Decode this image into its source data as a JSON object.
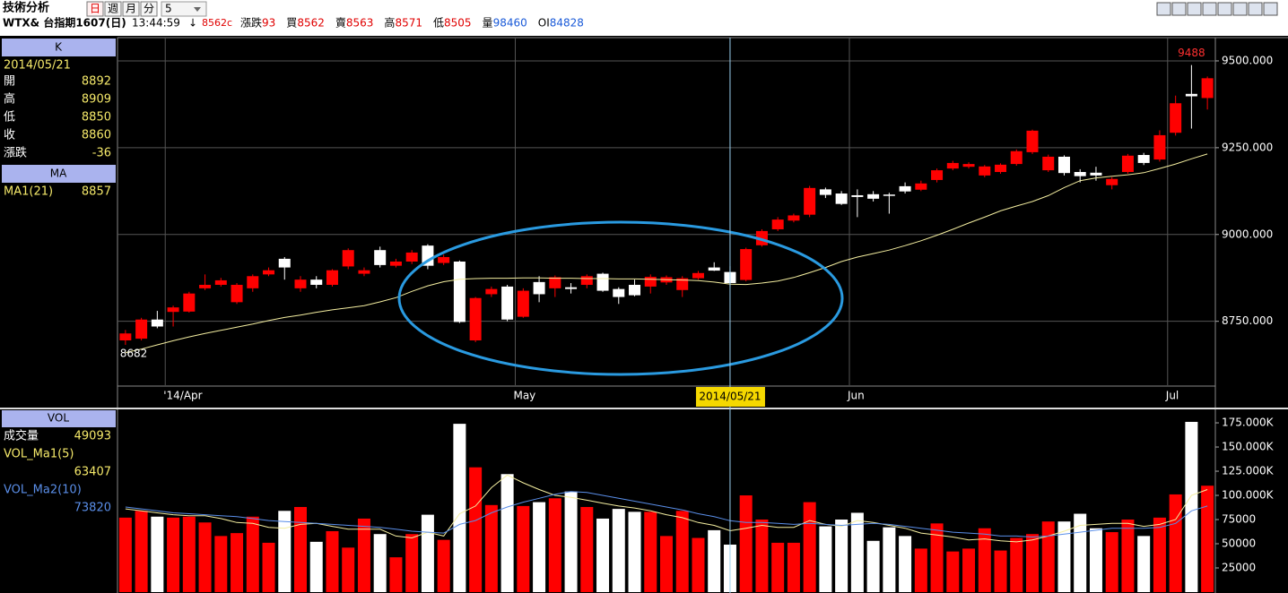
{
  "header": {
    "title": "技術分析",
    "tabs": [
      "日",
      "週",
      "月",
      "分"
    ],
    "select": "5",
    "symbol": "WTX& 台指期1607(日)",
    "time": "13:44:59",
    "arrow": "↓",
    "last": "8562c",
    "quote": [
      {
        "label": "漲跌",
        "value": 93
      },
      {
        "label": "買",
        "value": 8562
      },
      {
        "label": "賣",
        "value": 8563
      },
      {
        "label": "高",
        "value": 8571
      },
      {
        "label": "低",
        "value": 8505
      },
      {
        "label": "量",
        "value": 98460
      },
      {
        "label": "OI",
        "value": 84828
      }
    ]
  },
  "info_panel": {
    "heading": "K",
    "date": "2014/05/21",
    "rows": [
      {
        "label": "開",
        "value": 8892
      },
      {
        "label": "高",
        "value": 8909
      },
      {
        "label": "低",
        "value": 8850
      },
      {
        "label": "收",
        "value": 8860
      },
      {
        "label": "漲跌",
        "value": -36
      }
    ],
    "ma_heading": "MA",
    "ma_value": 8857
  },
  "vol_panel": {
    "heading": "VOL",
    "volume": 49093,
    "ma1": 63407,
    "ma2": 73820
  },
  "chart_data": [
    {
      "type": "candlestick",
      "categories": [
        null,
        null,
        null,
        "'14/Apr",
        null,
        null,
        null,
        null,
        null,
        null,
        null,
        null,
        null,
        null,
        null,
        null,
        null,
        null,
        null,
        null,
        null,
        null,
        null,
        null,
        null,
        "May",
        null,
        null,
        null,
        null,
        null,
        null,
        null,
        null,
        null,
        null,
        null,
        null,
        null,
        null,
        null,
        null,
        null,
        null,
        null,
        null,
        "Jun",
        null,
        null,
        null,
        null,
        null,
        null,
        null,
        null,
        null,
        null,
        null,
        null,
        null,
        null,
        null,
        null,
        null,
        null,
        null,
        "Jul",
        null,
        null
      ],
      "open": [
        8695,
        8700,
        8755,
        8777,
        8778,
        8845,
        8855,
        8805,
        8845,
        8885,
        8930,
        8845,
        8870,
        8855,
        8908,
        8887,
        8955,
        8910,
        8922,
        8968,
        8918,
        8922,
        8695,
        8828,
        8850,
        8763,
        8863,
        8845,
        8848,
        8855,
        8887,
        8843,
        8855,
        8850,
        8862,
        8840,
        8874,
        8905,
        8892,
        8869,
        8969,
        9015,
        9040,
        9057,
        9130,
        9118,
        9113,
        9116,
        9115,
        9139,
        9129,
        9157,
        9190,
        9195,
        9170,
        9180,
        9203,
        9237,
        9185,
        9224,
        9180,
        9178,
        9142,
        9180,
        9229,
        9216,
        9293,
        9405,
        9393
      ],
      "high": [
        8725,
        8760,
        8780,
        8795,
        8835,
        8885,
        8875,
        8860,
        8885,
        8905,
        8935,
        8880,
        8880,
        8900,
        8960,
        8905,
        8965,
        8930,
        8955,
        8972,
        8942,
        8925,
        8820,
        8850,
        8855,
        8845,
        8880,
        8882,
        8860,
        8885,
        8890,
        8848,
        8870,
        8885,
        8882,
        8880,
        8895,
        8920,
        8909,
        8962,
        9015,
        9050,
        9060,
        9140,
        9135,
        9125,
        9130,
        9125,
        9120,
        9150,
        9155,
        9190,
        9212,
        9208,
        9200,
        9205,
        9245,
        9302,
        9230,
        9228,
        9188,
        9195,
        9165,
        9232,
        9235,
        9300,
        9400,
        9488,
        9455
      ],
      "low": [
        8682,
        8695,
        8730,
        8735,
        8775,
        8840,
        8850,
        8800,
        8835,
        8880,
        8870,
        8835,
        8845,
        8850,
        8900,
        8880,
        8905,
        8905,
        8915,
        8900,
        8912,
        8745,
        8690,
        8820,
        8750,
        8760,
        8805,
        8820,
        8830,
        8845,
        8835,
        8800,
        8822,
        8830,
        8855,
        8820,
        8870,
        8895,
        8850,
        8865,
        8965,
        9010,
        9035,
        9050,
        9105,
        9085,
        9050,
        9095,
        9060,
        9118,
        9125,
        9150,
        9185,
        9190,
        9165,
        9175,
        9198,
        9232,
        9180,
        9170,
        9150,
        9155,
        9130,
        9175,
        9200,
        9210,
        9285,
        9305,
        9360
      ],
      "close": [
        8715,
        8755,
        8735,
        8790,
        8830,
        8855,
        8868,
        8855,
        8880,
        8897,
        8905,
        8870,
        8855,
        8897,
        8955,
        8897,
        8912,
        8922,
        8948,
        8910,
        8935,
        8748,
        8817,
        8843,
        8755,
        8838,
        8828,
        8877,
        8843,
        8880,
        8838,
        8820,
        8825,
        8878,
        8877,
        8874,
        8889,
        8896,
        8860,
        8958,
        9010,
        9043,
        9055,
        9134,
        9114,
        9088,
        9108,
        9103,
        9113,
        9124,
        9147,
        9185,
        9206,
        9203,
        9196,
        9201,
        9240,
        9299,
        9224,
        9177,
        9168,
        9170,
        9160,
        9227,
        9206,
        9286,
        9378,
        9398,
        9450
      ],
      "up_color": "#ff0000",
      "down_color": "#ffffff",
      "series": [
        {
          "name": "MA1(21)",
          "color": "#f4eea0",
          "values": [
            8660,
            8670,
            8682,
            8694,
            8705,
            8715,
            8724,
            8733,
            8742,
            8752,
            8761,
            8768,
            8776,
            8783,
            8789,
            8795,
            8806,
            8818,
            8836,
            8852,
            8864,
            8871,
            8873,
            8874,
            8874,
            8875,
            8875,
            8874,
            8874,
            8873,
            8873,
            8872,
            8872,
            8871,
            8870,
            8869,
            8867,
            8863,
            8857,
            8856,
            8860,
            8866,
            8876,
            8890,
            8905,
            8922,
            8935,
            8945,
            8955,
            8968,
            8982,
            8998,
            9015,
            9033,
            9050,
            9068,
            9082,
            9095,
            9112,
            9135,
            9155,
            9163,
            9168,
            9172,
            9178,
            9190,
            9203,
            9218,
            9232
          ]
        }
      ],
      "ylim": [
        8566,
        9567
      ],
      "yticks": [
        {
          "value": 9500,
          "label": "9500.000"
        },
        {
          "value": 9250,
          "label": "9250.000"
        },
        {
          "value": 9000,
          "label": "9000.000"
        },
        {
          "value": 8750,
          "label": "8750.000"
        }
      ],
      "grid": true
    },
    {
      "type": "bar",
      "name": "成交量",
      "values": [
        77000,
        84000,
        78000,
        77000,
        78000,
        72000,
        58000,
        61000,
        78000,
        51000,
        84000,
        88000,
        52000,
        63000,
        46000,
        76000,
        60000,
        36000,
        60000,
        80000,
        54000,
        174000,
        129000,
        90000,
        122000,
        89000,
        93000,
        97000,
        104000,
        88000,
        76000,
        86000,
        83000,
        83000,
        58000,
        84000,
        56000,
        64000,
        49093,
        100000,
        75000,
        51000,
        51000,
        93000,
        68000,
        75000,
        82000,
        53000,
        67000,
        58000,
        45000,
        71000,
        42000,
        45000,
        66000,
        43000,
        56000,
        60000,
        73000,
        73000,
        81000,
        66000,
        62000,
        75000,
        58000,
        77000,
        101000,
        176000,
        110000
      ],
      "series": [
        {
          "name": "VOL_Ma1(5)",
          "color": "#f4eea0",
          "values": [
            86000,
            84000,
            82000,
            80000,
            79000,
            79000,
            76000,
            72000,
            71000,
            67000,
            66000,
            70000,
            71000,
            68000,
            65000,
            65000,
            65000,
            58000,
            56000,
            62000,
            58000,
            81000,
            89000,
            108000,
            121000,
            113000,
            106000,
            100000,
            98000,
            95000,
            92000,
            89000,
            87000,
            84000,
            80000,
            77000,
            72000,
            69000,
            63407,
            66000,
            69000,
            67000,
            67000,
            74000,
            70000,
            68000,
            74000,
            72000,
            69000,
            66000,
            61000,
            59000,
            57000,
            54000,
            55000,
            53000,
            52000,
            54000,
            58000,
            63000,
            69000,
            70000,
            71000,
            71000,
            68000,
            70000,
            75000,
            100000,
            106000
          ]
        },
        {
          "name": "VOL_Ma2(10)",
          "color": "#5a8ee8",
          "values": [
            88000,
            86000,
            84000,
            82000,
            81000,
            80000,
            79000,
            78000,
            76000,
            74000,
            73000,
            72000,
            71000,
            70000,
            69000,
            68000,
            67000,
            65000,
            63000,
            62000,
            61000,
            70000,
            74000,
            82000,
            88000,
            93000,
            97000,
            101000,
            104000,
            103000,
            100000,
            97000,
            94000,
            91000,
            88000,
            85000,
            81000,
            78000,
            73820,
            72000,
            72000,
            71000,
            70000,
            71000,
            70000,
            69000,
            70000,
            71000,
            70000,
            68000,
            66000,
            64000,
            62000,
            61000,
            60000,
            58000,
            58000,
            57000,
            58000,
            60000,
            62000,
            64000,
            66000,
            66000,
            66000,
            67000,
            71000,
            84000,
            89000
          ]
        }
      ],
      "ylim": [
        0,
        188000
      ],
      "yticks": [
        {
          "value": 175000,
          "label": "175.000K"
        },
        {
          "value": 150000,
          "label": "150.000K"
        },
        {
          "value": 125000,
          "label": "125.000K"
        },
        {
          "value": 100000,
          "label": "100.000K"
        },
        75000,
        50000,
        25000
      ],
      "grid": false
    }
  ]
}
